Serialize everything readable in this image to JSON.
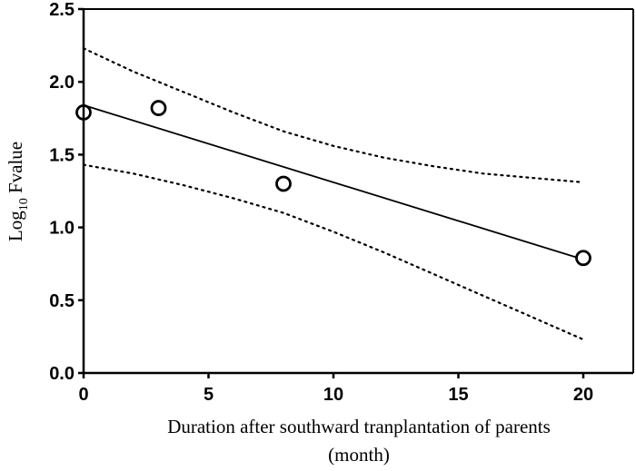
{
  "chart_data": {
    "type": "scatter",
    "xlabel_line1": "Duration after southward tranplantation of parents",
    "xlabel_line2": "(month)",
    "ylabel_main": "Log",
    "ylabel_sub": "10",
    "ylabel_rest": " Fvalue",
    "xlim": [
      0,
      22
    ],
    "ylim": [
      0,
      2.5
    ],
    "xticks": [
      0,
      5,
      10,
      15,
      20
    ],
    "xtick_labels": [
      "0",
      "5",
      "10",
      "15",
      "20"
    ],
    "yticks": [
      0,
      0.5,
      1.0,
      1.5,
      2.0,
      2.5
    ],
    "ytick_labels": [
      "0.0",
      "0.5",
      "1.0",
      "1.5",
      "2.0",
      "2.5"
    ],
    "grid": false,
    "series": [
      {
        "kind": "points",
        "marker": "open-circle",
        "x": [
          0,
          3,
          8,
          20
        ],
        "y": [
          1.79,
          1.82,
          1.3,
          0.79
        ]
      },
      {
        "kind": "regression-line",
        "style": "solid",
        "x": [
          0,
          20
        ],
        "y": [
          1.84,
          0.78
        ]
      },
      {
        "kind": "confidence-band-upper",
        "style": "dotted",
        "x": [
          0,
          2,
          4,
          6,
          8,
          10,
          12,
          14,
          16,
          18,
          20
        ],
        "y": [
          2.23,
          2.07,
          1.93,
          1.79,
          1.66,
          1.56,
          1.48,
          1.42,
          1.37,
          1.34,
          1.31
        ]
      },
      {
        "kind": "confidence-band-lower",
        "style": "dotted",
        "x": [
          0,
          2,
          4,
          6,
          8,
          10,
          12,
          14,
          16,
          18,
          20
        ],
        "y": [
          1.43,
          1.37,
          1.29,
          1.2,
          1.1,
          0.97,
          0.83,
          0.68,
          0.53,
          0.38,
          0.23
        ]
      }
    ],
    "colors": {
      "axis": "#000000",
      "line": "#000000",
      "marker_stroke": "#000000",
      "marker_fill": "#ffffff",
      "background": "#ffffff"
    }
  }
}
